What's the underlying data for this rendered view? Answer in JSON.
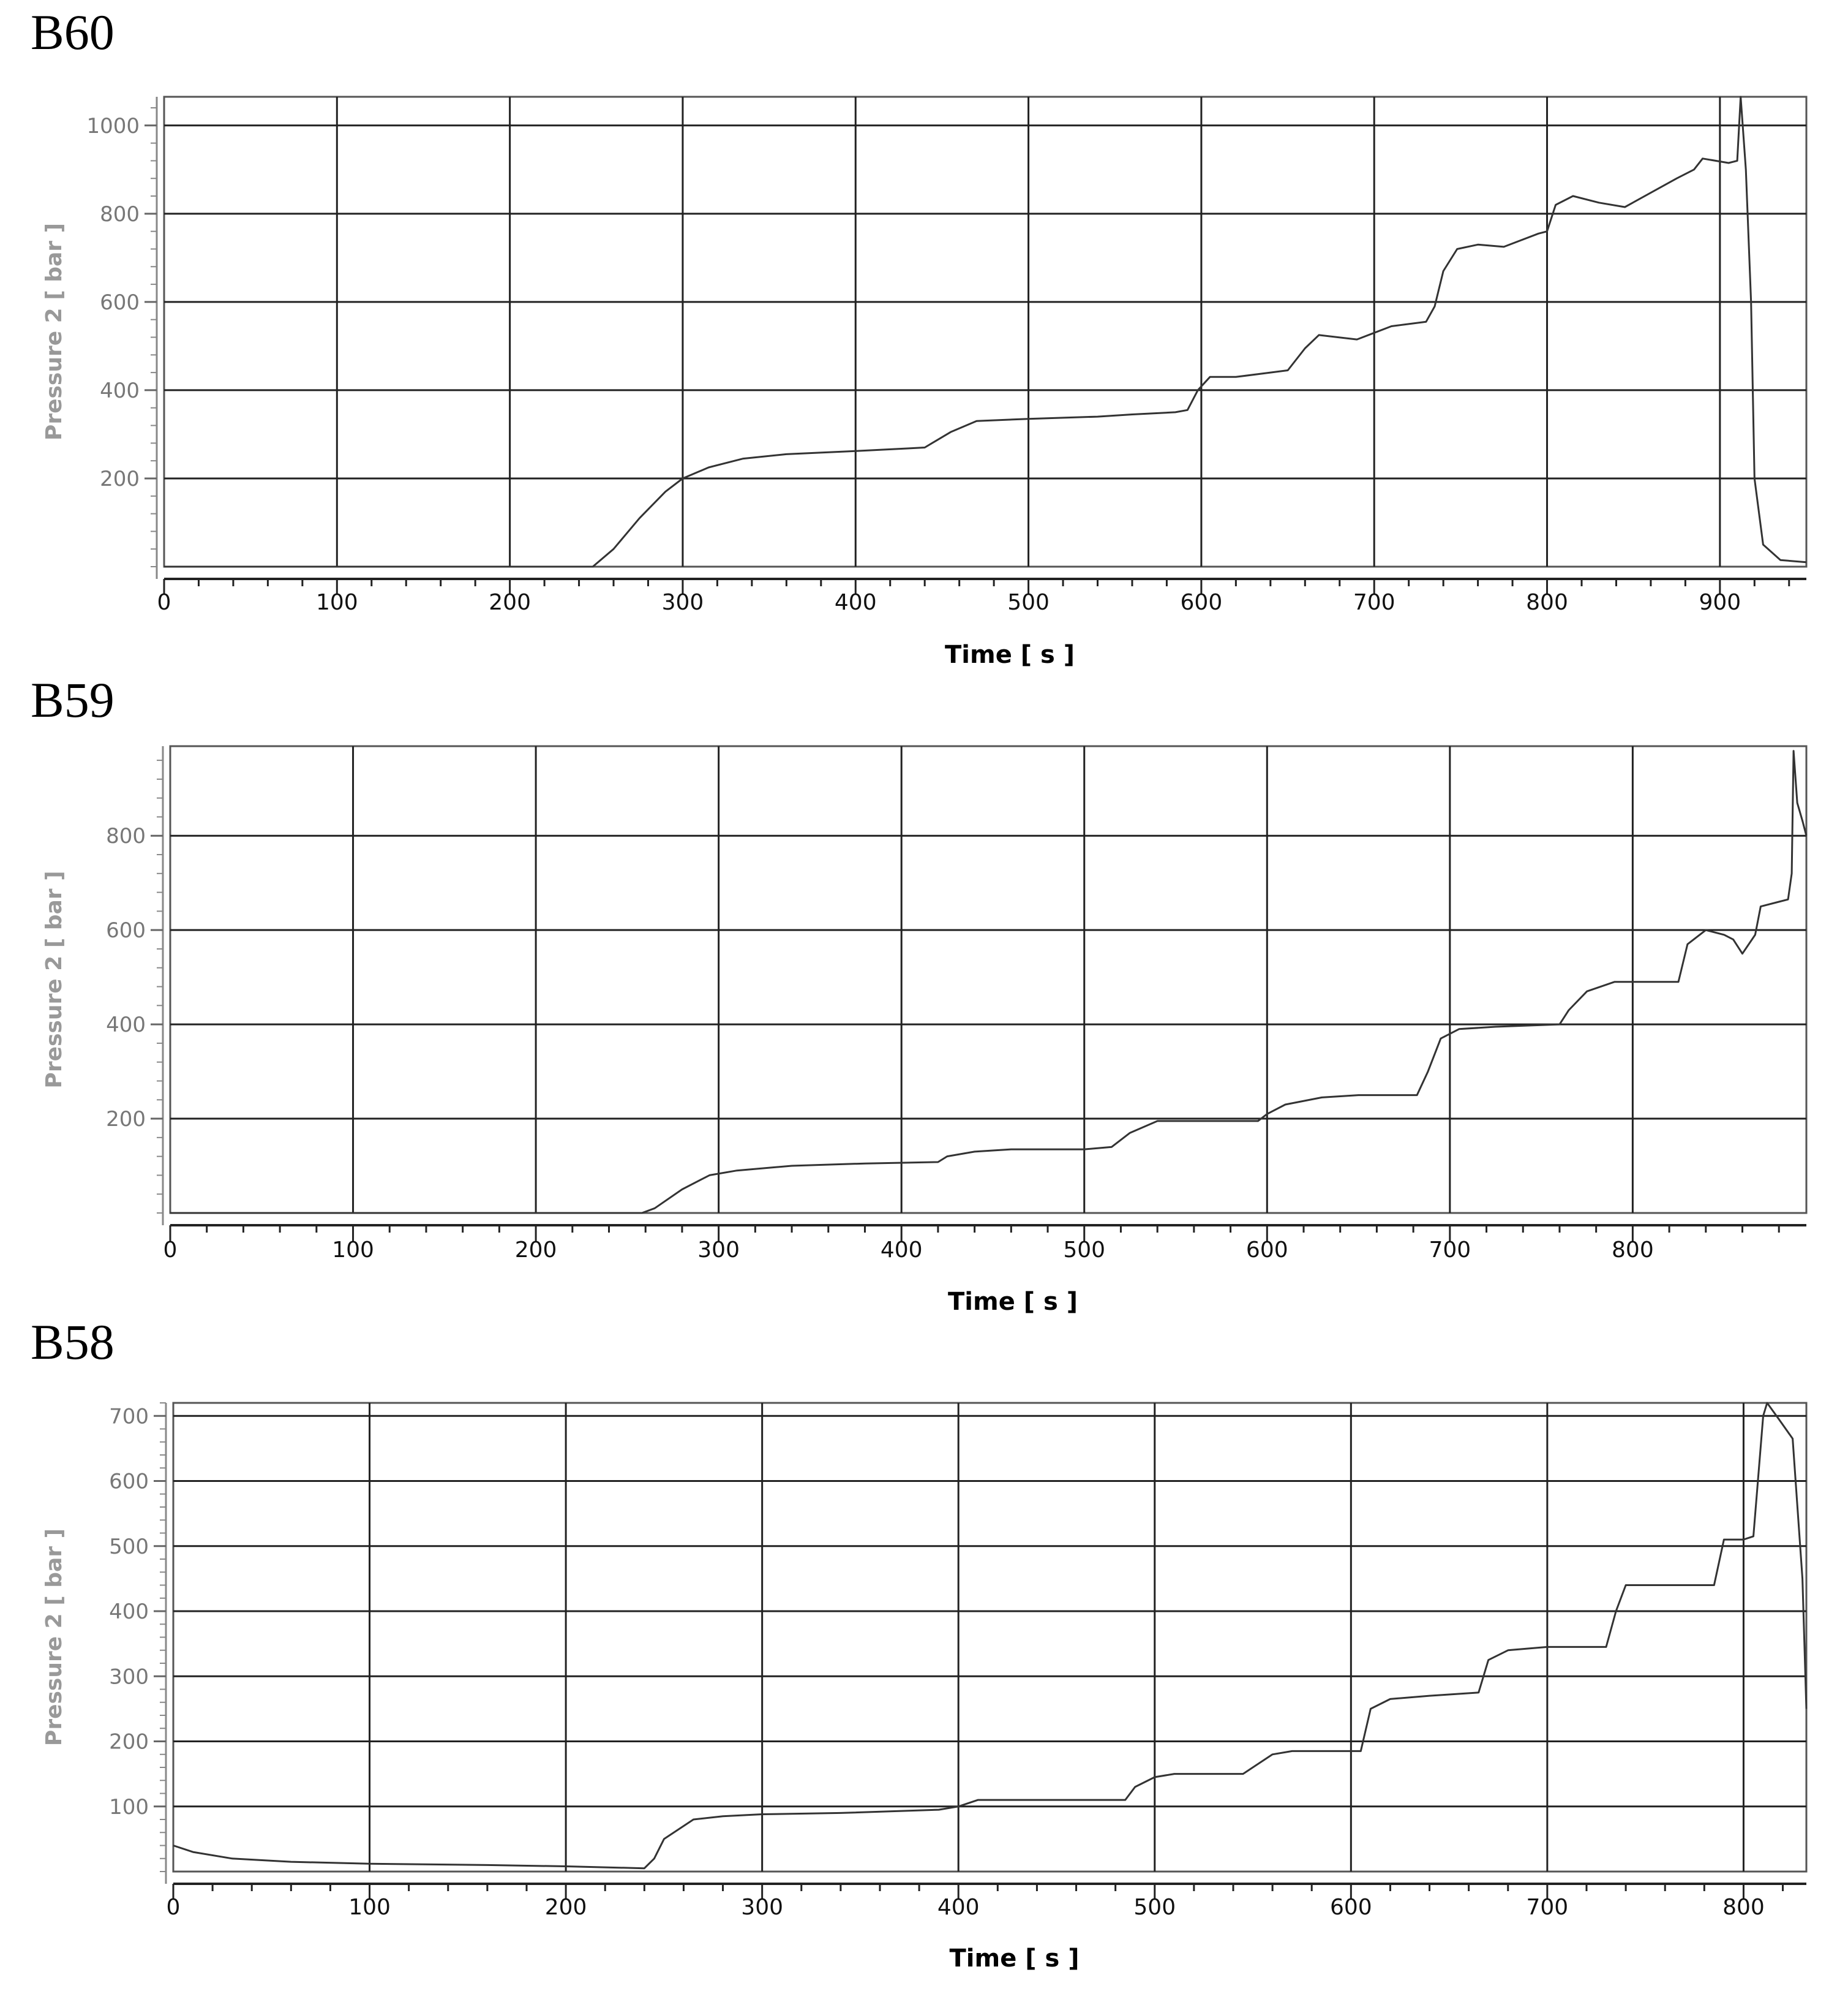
{
  "panels": [
    {
      "label": "B60"
    },
    {
      "label": "B59"
    },
    {
      "label": "B58"
    }
  ],
  "chart_data": [
    {
      "type": "line",
      "title": "",
      "xlabel": "Time  [ s ]",
      "ylabel": "Pressure 2  [ bar ]",
      "xlim": [
        0,
        950
      ],
      "ylim": [
        0,
        1065
      ],
      "xticks": [
        0,
        100,
        200,
        300,
        400,
        500,
        600,
        700,
        800,
        900
      ],
      "yticks": [
        200,
        400,
        600,
        800,
        1000
      ],
      "grid": true,
      "series": [
        {
          "x": [
            0,
            248,
            260,
            275,
            290,
            300,
            315,
            335,
            360,
            400,
            430,
            440,
            455,
            470,
            500,
            540,
            560,
            585,
            592,
            598,
            605,
            620,
            640,
            650,
            660,
            668,
            690,
            700,
            710,
            730,
            735,
            740,
            748,
            760,
            775,
            795,
            800,
            805,
            815,
            830,
            845,
            875,
            885,
            890,
            905,
            910,
            912,
            915,
            918,
            920,
            925,
            935,
            950
          ],
          "y": [
            0,
            0,
            40,
            110,
            170,
            200,
            225,
            245,
            255,
            262,
            268,
            270,
            305,
            330,
            335,
            340,
            345,
            350,
            355,
            400,
            430,
            430,
            440,
            445,
            495,
            525,
            515,
            530,
            545,
            555,
            590,
            670,
            720,
            730,
            725,
            755,
            760,
            820,
            840,
            825,
            815,
            880,
            900,
            925,
            915,
            920,
            1065,
            900,
            600,
            200,
            50,
            15,
            10
          ]
        }
      ]
    },
    {
      "type": "line",
      "title": "",
      "xlabel": "Time  [ s ]",
      "ylabel": "Pressure 2  [ bar ]",
      "xlim": [
        0,
        895
      ],
      "ylim": [
        0,
        990
      ],
      "xticks": [
        0,
        100,
        200,
        300,
        400,
        500,
        600,
        700,
        800
      ],
      "yticks": [
        200,
        400,
        600,
        800
      ],
      "grid": true,
      "series": [
        {
          "x": [
            0,
            258,
            265,
            280,
            295,
            310,
            340,
            380,
            420,
            425,
            440,
            460,
            500,
            515,
            525,
            540,
            560,
            595,
            600,
            610,
            630,
            650,
            682,
            688,
            695,
            705,
            725,
            760,
            765,
            775,
            790,
            825,
            830,
            840,
            850,
            855,
            860,
            867,
            870,
            880,
            885,
            887,
            888,
            890,
            893,
            895
          ],
          "y": [
            0,
            0,
            10,
            50,
            80,
            90,
            100,
            105,
            108,
            120,
            130,
            135,
            135,
            140,
            170,
            195,
            195,
            195,
            210,
            230,
            245,
            250,
            250,
            300,
            370,
            390,
            395,
            400,
            430,
            470,
            490,
            490,
            570,
            600,
            590,
            580,
            550,
            590,
            650,
            660,
            665,
            720,
            980,
            870,
            830,
            800
          ]
        }
      ]
    },
    {
      "type": "line",
      "title": "",
      "xlabel": "Time  [ s ]",
      "ylabel": "Pressure 2  [ bar ]",
      "xlim": [
        0,
        832
      ],
      "ylim": [
        0,
        720
      ],
      "xticks": [
        0,
        100,
        200,
        300,
        400,
        500,
        600,
        700,
        800
      ],
      "yticks": [
        100,
        200,
        300,
        400,
        500,
        600,
        700
      ],
      "grid": true,
      "series": [
        {
          "x": [
            0,
            10,
            30,
            60,
            100,
            160,
            200,
            240,
            245,
            250,
            265,
            280,
            300,
            340,
            390,
            400,
            410,
            485,
            490,
            500,
            510,
            545,
            550,
            560,
            570,
            605,
            610,
            620,
            640,
            665,
            670,
            680,
            700,
            730,
            735,
            740,
            760,
            785,
            790,
            800,
            805,
            810,
            812,
            818,
            825,
            830,
            832
          ],
          "y": [
            40,
            30,
            20,
            15,
            12,
            10,
            8,
            5,
            20,
            50,
            80,
            85,
            88,
            90,
            95,
            100,
            110,
            110,
            130,
            145,
            150,
            150,
            160,
            180,
            185,
            185,
            250,
            265,
            270,
            275,
            325,
            340,
            345,
            345,
            400,
            440,
            440,
            440,
            510,
            510,
            515,
            700,
            720,
            695,
            665,
            450,
            250
          ]
        }
      ]
    }
  ]
}
